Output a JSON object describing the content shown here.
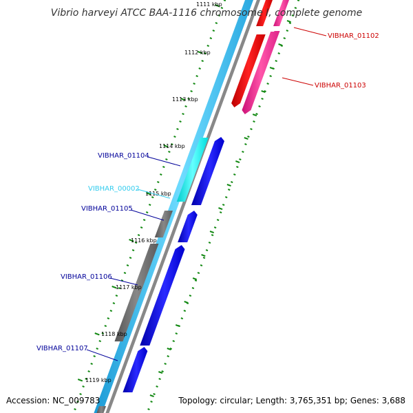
{
  "title": "Vibrio harveyi ATCC BAA-1116 chromosome I, complete genome",
  "footer": {
    "accession": "Accession: NC_009783",
    "stats": "Topology: circular; Length: 3,765,351 bp; Genes: 3,688"
  },
  "kbp_ticks": [
    "1111 kbp",
    "1112 kbp",
    "1113 kbp",
    "1114 kbp",
    "1115 kbp",
    "1116 kbp",
    "1117 kbp",
    "1118 kbp",
    "1119 kbp"
  ],
  "genes": [
    {
      "label": "VIBHAR_01102",
      "color": "#cc0000"
    },
    {
      "label": "VIBHAR_01103",
      "color": "#cc0000"
    },
    {
      "label": "VIBHAR_01104",
      "color": "#000099"
    },
    {
      "label": "VIBHAR_00002",
      "color": "#33ccee"
    },
    {
      "label": "VIBHAR_01105",
      "color": "#000099"
    },
    {
      "label": "VIBHAR_01106",
      "color": "#000099"
    },
    {
      "label": "VIBHAR_01107",
      "color": "#000099"
    }
  ],
  "colors": {
    "gc_ticks": "#118811",
    "backbone": "#888888",
    "cds_forward": "#33ccff",
    "cds_reverse": "#0000ee",
    "gene_red": "#ff0000",
    "gene_pink": "#ff3399",
    "gene_cyan": "#00ffff",
    "gene_gray": "#666666"
  }
}
